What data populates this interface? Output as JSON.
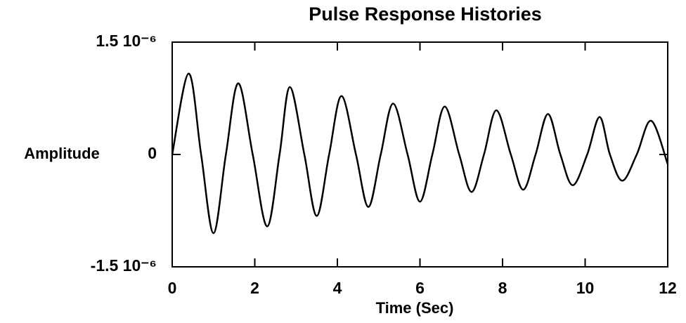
{
  "chart_data": {
    "type": "line",
    "title": "Pulse Response Histories",
    "xlabel": "Time (Sec)",
    "ylabel": "Amplitude",
    "x": [
      0,
      0.4,
      0.7,
      1.0,
      1.3,
      1.6,
      1.95,
      2.3,
      2.6,
      2.85,
      3.2,
      3.5,
      3.8,
      4.1,
      4.45,
      4.75,
      5.05,
      5.35,
      5.7,
      6.0,
      6.3,
      6.6,
      6.95,
      7.25,
      7.55,
      7.85,
      8.2,
      8.5,
      8.8,
      9.1,
      9.4,
      9.7,
      10.05,
      10.35,
      10.6,
      10.9,
      11.25,
      11.6,
      12
    ],
    "series": [
      {
        "color": "#000000",
        "values": [
          0,
          1.08e-06,
          0,
          -1.05e-06,
          0,
          9.5e-07,
          0,
          -9.6e-07,
          0,
          9e-07,
          0,
          -8.2e-07,
          0,
          7.8e-07,
          0,
          -7e-07,
          0,
          6.8e-07,
          0,
          -6.3e-07,
          0,
          6.4e-07,
          0,
          -5e-07,
          0,
          5.9e-07,
          0,
          -4.7e-07,
          0,
          5.4e-07,
          0,
          -4.1e-07,
          0,
          5e-07,
          0,
          -3.5e-07,
          0,
          4.5e-07,
          -1.3e-07
        ]
      }
    ],
    "xlim": [
      0,
      12
    ],
    "xticks": [
      0,
      2,
      4,
      6,
      8,
      10,
      12
    ],
    "ylim": [
      -1.5e-06,
      1.5e-06
    ],
    "yticks": [
      {
        "value": -1.5e-06,
        "label": "-1.5 10⁻⁶"
      },
      0,
      {
        "value": 1.5e-06,
        "label": "1.5 10⁻⁶"
      }
    ],
    "grid": false
  }
}
